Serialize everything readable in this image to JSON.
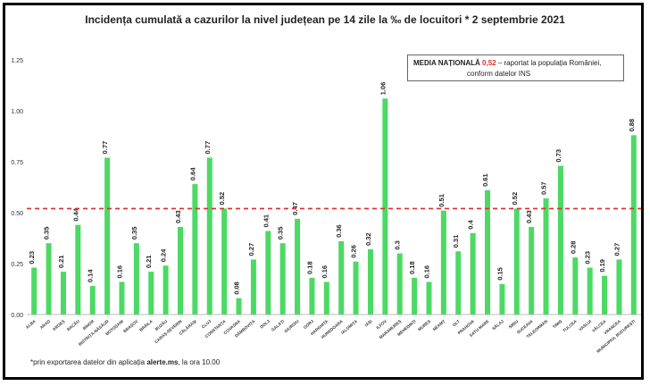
{
  "chart_data": {
    "type": "bar",
    "title": "Incidența cumulată a cazurilor la nivel județean pe 14 zile la ‰ de locuitori * 2 septembrie 2021",
    "categories": [
      "ALBA",
      "ARAD",
      "ARGEȘ",
      "BACĂU",
      "BIHOR",
      "BISTRIȚA-NĂSĂUD",
      "BOTOȘANI",
      "BRAȘOV",
      "BRĂILA",
      "BUZĂU",
      "CARAȘ-SEVERIN",
      "CĂLĂRAȘI",
      "CLUJ",
      "CONSTANȚA",
      "COVASNA",
      "DÂMBOVIȚA",
      "DOLJ",
      "GALAȚI",
      "GIURGIU",
      "GORJ",
      "HARGHITA",
      "HUNEDOARA",
      "IALOMIȚA",
      "IAȘI",
      "ILFOV",
      "MARAMUREȘ",
      "MEHEDINȚI",
      "MUREȘ",
      "NEAMȚ",
      "OLT",
      "PRAHOVA",
      "SATU MARE",
      "SĂLAJ",
      "SIBIU",
      "SUCEAVA",
      "TELEORMAN",
      "TIMIȘ",
      "TULCEA",
      "VASLUI",
      "VÂLCEA",
      "VRANCEA",
      "MUNICIPIUL BUCUREȘTI"
    ],
    "values": [
      0.23,
      0.35,
      0.21,
      0.44,
      0.14,
      0.77,
      0.16,
      0.35,
      0.21,
      0.24,
      0.43,
      0.64,
      0.77,
      0.52,
      0.08,
      0.27,
      0.41,
      0.35,
      0.47,
      0.18,
      0.16,
      0.36,
      0.26,
      0.32,
      1.06,
      0.3,
      0.18,
      0.16,
      0.51,
      0.31,
      0.4,
      0.61,
      0.15,
      0.52,
      0.43,
      0.57,
      0.73,
      0.28,
      0.23,
      0.19,
      0.27,
      0.88
    ],
    "value_labels": [
      "0.23",
      "0.35",
      "0.21",
      "0.44",
      "0.14",
      "0.77",
      "0.16",
      "0.35",
      "0.21",
      "0.24",
      "0.43",
      "0.64",
      "0.77",
      "0.52",
      "0.08",
      "0.27",
      "0.41",
      "0.35",
      "0.47",
      "0.18",
      "0.16",
      "0.36",
      "0.26",
      "0.32",
      "1.06",
      "0.3",
      "0.18",
      "0.16",
      "0.51",
      "0.31",
      "0.4",
      "0.61",
      "0.15",
      "0.52",
      "0.43",
      "0.57",
      "0.73",
      "0.28",
      "0.23",
      "0.19",
      "0.27",
      "0.88"
    ],
    "ylim": [
      0,
      1.25
    ],
    "yticks": [
      "0.00",
      "0.25",
      "0.50",
      "0.75",
      "1.00",
      "1.25"
    ],
    "reference_line": 0.52,
    "bar_color": "#4cd964",
    "reference_color": "#e32b2b",
    "grid": false
  },
  "national_box": {
    "label": "MEDIA NAȚIONALĂ",
    "value": "0,52",
    "text1": " – raportat la populația României,",
    "text2": "conform datelor INS"
  },
  "footnote": {
    "prefix": "*prin exportarea datelor din aplicația ",
    "source": "alerte.ms",
    "suffix": ", la ora 10.00"
  }
}
